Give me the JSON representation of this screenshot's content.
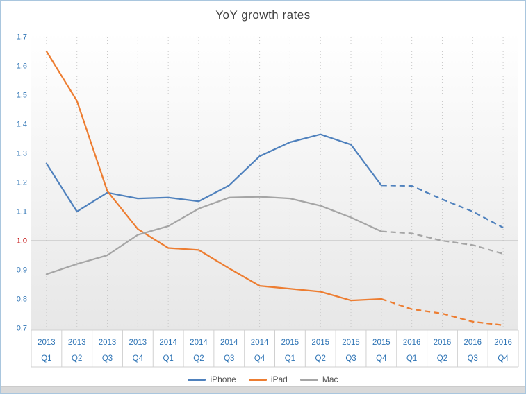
{
  "title": "YoY growth rates",
  "frame": {
    "border_color": "#a9c6de",
    "background": "#ffffff",
    "bottom_strip_color": "#d9d9d9"
  },
  "chart_data": {
    "type": "line",
    "title": "YoY growth rates",
    "x_labels": [
      {
        "year": "2013",
        "quarter": "Q1"
      },
      {
        "year": "2013",
        "quarter": "Q2"
      },
      {
        "year": "2013",
        "quarter": "Q3"
      },
      {
        "year": "2013",
        "quarter": "Q4"
      },
      {
        "year": "2014",
        "quarter": "Q1"
      },
      {
        "year": "2014",
        "quarter": "Q2"
      },
      {
        "year": "2014",
        "quarter": "Q3"
      },
      {
        "year": "2014",
        "quarter": "Q4"
      },
      {
        "year": "2015",
        "quarter": "Q1"
      },
      {
        "year": "2015",
        "quarter": "Q2"
      },
      {
        "year": "2015",
        "quarter": "Q3"
      },
      {
        "year": "2015",
        "quarter": "Q4"
      },
      {
        "year": "2016",
        "quarter": "Q1"
      },
      {
        "year": "2016",
        "quarter": "Q2"
      },
      {
        "year": "2016",
        "quarter": "Q3"
      },
      {
        "year": "2016",
        "quarter": "Q4"
      }
    ],
    "series": [
      {
        "name": "iPhone",
        "color": "#4f81bd",
        "values": [
          1.265,
          1.1,
          1.165,
          1.145,
          1.148,
          1.135,
          1.19,
          1.29,
          1.338,
          1.365,
          1.33,
          1.19,
          1.188,
          1.142,
          1.1,
          1.045
        ]
      },
      {
        "name": "iPad",
        "color": "#ed7d31",
        "values": [
          1.65,
          1.48,
          1.17,
          1.04,
          0.975,
          0.968,
          0.905,
          0.845,
          0.835,
          0.825,
          0.795,
          0.8,
          0.765,
          0.75,
          0.722,
          0.71
        ]
      },
      {
        "name": "Mac",
        "color": "#a5a5a5",
        "values": [
          0.885,
          0.92,
          0.95,
          1.02,
          1.05,
          1.11,
          1.148,
          1.151,
          1.145,
          1.12,
          1.08,
          1.032,
          1.025,
          1.0,
          0.985,
          0.955
        ]
      }
    ],
    "forecast_start_index": 11,
    "ylim": [
      0.7,
      1.7
    ],
    "yticks": [
      "0.7",
      "0.8",
      "0.9",
      "1.0",
      "1.1",
      "1.2",
      "1.3",
      "1.4",
      "1.5",
      "1.6",
      "1.7"
    ],
    "ytick_highlight": {
      "label": "1.0",
      "color": "#c00000"
    },
    "baseline_value": 1.0,
    "axis_label_color": "#2e74b5",
    "grid_color": "#c8c8c8",
    "table_line_color": "#d0d0d0",
    "baseline_color": "#b8b8b8",
    "plot_gradient": {
      "top": "#ffffff",
      "bottom": "#e7e7e7"
    },
    "grid": "vertical-dashed",
    "legend_position": "bottom"
  }
}
